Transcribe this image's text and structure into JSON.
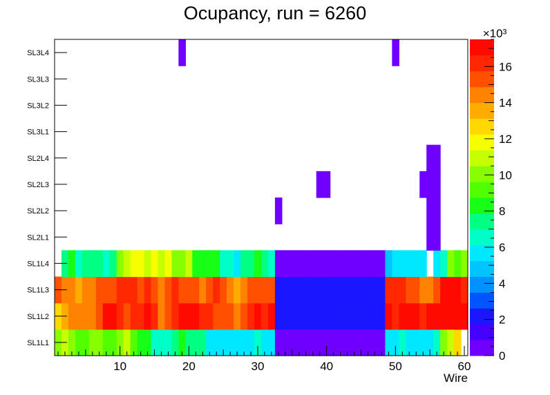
{
  "chart_data": {
    "type": "heatmap",
    "title": "Ocupancy, run = 6260",
    "xlabel": "Wire",
    "ylabel": "",
    "xlim": [
      0.5,
      60.5
    ],
    "x_ticks": [
      10,
      20,
      30,
      40,
      50,
      60
    ],
    "y_categories": [
      "SL1L1",
      "SL1L2",
      "SL1L3",
      "SL1L4",
      "SL2L1",
      "SL2L2",
      "SL2L3",
      "SL2L4",
      "SL3L1",
      "SL3L2",
      "SL3L3",
      "SL3L4"
    ],
    "z_range": [
      0,
      17.5
    ],
    "z_ticks": [
      0,
      2,
      4,
      6,
      8,
      10,
      12,
      14,
      16
    ],
    "z_exponent": "×10³",
    "palette": [
      "#6f00ff",
      "#4500ff",
      "#1a17ff",
      "#0055ff",
      "#0092ff",
      "#00c4ff",
      "#00e8ff",
      "#00ffc8",
      "#00ff82",
      "#17ff17",
      "#51ff00",
      "#88ff00",
      "#c5ff00",
      "#f5ff00",
      "#ffd800",
      "#ffab00",
      "#ff8200",
      "#ff5000",
      "#ff2800",
      "#ff0a00"
    ],
    "rows": {
      "SL1L1": [
        9.8,
        10.5,
        10.2,
        9.3,
        9.6,
        10.1,
        9.8,
        9.0,
        9.4,
        10.3,
        10.5,
        9.2,
        8.3,
        8.6,
        6.8,
        6.4,
        6.6,
        7.6,
        7.9,
        7.4,
        7.8,
        7.5,
        6.0,
        5.8,
        6.1,
        5.7,
        6.0,
        5.9,
        5.8,
        6.2,
        5.9,
        6.1,
        0.6,
        0.7,
        0.6,
        0.7,
        0.8,
        0.7,
        0.6,
        0.7,
        0.8,
        0.7,
        0.6,
        0.7,
        0.6,
        0.7,
        0.6,
        0.7,
        6.0,
        5.8,
        6.2,
        5.9,
        6.1,
        6.0,
        5.9,
        6.9,
        10.2,
        11.3,
        12.4,
        0
      ],
      "SL1L2": [
        12.5,
        13.3,
        14.4,
        14.7,
        14.5,
        14.3,
        15.2,
        16.7,
        17.3,
        16.1,
        15.4,
        16.4,
        16.3,
        17.5,
        16.1,
        14.4,
        15.1,
        16.2,
        17.2,
        17.4,
        17.3,
        16.6,
        16.0,
        15.4,
        15.2,
        15.3,
        14.3,
        15.5,
        16.2,
        17.1,
        16.5,
        17.4,
        2.0,
        1.9,
        2.0,
        1.9,
        2.0,
        1.9,
        2.1,
        2.0,
        1.9,
        2.0,
        1.9,
        2.0,
        1.9,
        2.0,
        2.1,
        2.0,
        17.2,
        16.3,
        17.4,
        16.8,
        17.3,
        16.5,
        17.1,
        17.2,
        17.3,
        17.1,
        17.4,
        16.9
      ],
      "SL1L3": [
        15.6,
        14.4,
        14.2,
        13.7,
        14.4,
        14.3,
        15.2,
        15.1,
        15.1,
        16.0,
        15.9,
        16.1,
        15.7,
        16.2,
        15.6,
        14.3,
        15.3,
        16.1,
        15.4,
        15.4,
        15.1,
        14.2,
        15.6,
        16.1,
        15.4,
        14.2,
        13.6,
        14.3,
        15.5,
        15.2,
        15.5,
        15.2,
        2.1,
        2.0,
        2.1,
        2.0,
        2.1,
        2.0,
        2.1,
        2.0,
        2.1,
        2.0,
        2.1,
        2.0,
        2.1,
        2.0,
        2.1,
        2.0,
        15.8,
        15.9,
        15.8,
        15.6,
        14.9,
        14.5,
        14.6,
        15.6,
        16.9,
        17.5,
        17.2,
        15.9
      ],
      "SL1L4": [
        0,
        7.6,
        8.1,
        6.7,
        7.5,
        7.2,
        7.5,
        6.9,
        7.6,
        10.4,
        10.5,
        11.5,
        11.7,
        10.6,
        11.6,
        10.5,
        11.4,
        9.7,
        10.1,
        10.6,
        8.2,
        8.4,
        8.5,
        8.2,
        6.3,
        6.7,
        6.1,
        7.8,
        7.7,
        8.1,
        7.7,
        6.6,
        0.8,
        0.7,
        0.8,
        0.7,
        0.8,
        0.7,
        0.8,
        0.7,
        0.8,
        0.7,
        0.8,
        0.7,
        0.8,
        0.7,
        0.8,
        0.7,
        4.6,
        5.4,
        5.5,
        5.6,
        5.3,
        5.4,
        0,
        5.5,
        6.8,
        10.2,
        9.4,
        10.3
      ],
      "SL2L1": [
        0,
        0,
        0,
        0,
        0,
        0,
        0,
        0,
        0,
        0,
        0,
        0,
        0,
        0,
        0,
        0,
        0,
        0,
        0,
        0,
        0,
        0,
        0,
        0,
        0,
        0,
        0,
        0,
        0,
        0,
        0,
        0,
        0,
        0,
        0,
        0,
        0,
        0,
        0,
        0,
        0,
        0,
        0,
        0,
        0,
        0,
        0,
        0,
        0,
        0,
        0,
        0,
        0,
        0,
        0.5,
        0.5,
        0,
        0,
        0,
        0
      ],
      "SL2L2": [
        0,
        0,
        0,
        0,
        0,
        0,
        0,
        0,
        0,
        0,
        0,
        0,
        0,
        0,
        0,
        0,
        0,
        0,
        0,
        0,
        0,
        0,
        0,
        0,
        0,
        0,
        0,
        0,
        0,
        0,
        0,
        0,
        0.6,
        0,
        0,
        0,
        0,
        0,
        0,
        0,
        0,
        0,
        0,
        0,
        0,
        0,
        0,
        0,
        0,
        0,
        0,
        0,
        0,
        0,
        0.5,
        0.5,
        0,
        0,
        0,
        0
      ],
      "SL2L3": [
        0,
        0,
        0,
        0,
        0,
        0,
        0,
        0,
        0,
        0,
        0,
        0,
        0,
        0,
        0,
        0,
        0,
        0,
        0,
        0,
        0,
        0,
        0,
        0,
        0,
        0,
        0,
        0,
        0,
        0,
        0,
        0,
        0,
        0,
        0,
        0,
        0,
        0,
        0.6,
        0.6,
        0,
        0,
        0,
        0,
        0,
        0,
        0,
        0,
        0,
        0,
        0,
        0,
        0,
        0.6,
        0.5,
        0.5,
        0,
        0,
        0,
        0
      ],
      "SL2L4": [
        0,
        0,
        0,
        0,
        0,
        0,
        0,
        0,
        0,
        0,
        0,
        0,
        0,
        0,
        0,
        0,
        0,
        0,
        0,
        0,
        0,
        0,
        0,
        0,
        0,
        0,
        0,
        0,
        0,
        0,
        0,
        0,
        0,
        0,
        0,
        0,
        0,
        0,
        0,
        0,
        0,
        0,
        0,
        0,
        0,
        0,
        0,
        0,
        0,
        0,
        0,
        0,
        0,
        0,
        0.5,
        0.5,
        0,
        0,
        0,
        0
      ],
      "SL3L1": [
        0,
        0,
        0,
        0,
        0,
        0,
        0,
        0,
        0,
        0,
        0,
        0,
        0,
        0,
        0,
        0,
        0,
        0,
        0,
        0,
        0,
        0,
        0,
        0,
        0,
        0,
        0,
        0,
        0,
        0,
        0,
        0,
        0,
        0,
        0,
        0,
        0,
        0,
        0,
        0,
        0,
        0,
        0,
        0,
        0,
        0,
        0,
        0,
        0,
        0,
        0,
        0,
        0,
        0,
        0,
        0,
        0,
        0,
        0,
        0
      ],
      "SL3L2": [
        0,
        0,
        0,
        0,
        0,
        0,
        0,
        0,
        0,
        0,
        0,
        0,
        0,
        0,
        0,
        0,
        0,
        0,
        0,
        0,
        0,
        0,
        0,
        0,
        0,
        0,
        0,
        0,
        0,
        0,
        0,
        0,
        0,
        0,
        0,
        0,
        0,
        0,
        0,
        0,
        0,
        0,
        0,
        0,
        0,
        0,
        0,
        0,
        0,
        0,
        0,
        0,
        0,
        0,
        0,
        0,
        0,
        0,
        0,
        0
      ],
      "SL3L3": [
        0,
        0,
        0,
        0,
        0,
        0,
        0,
        0,
        0,
        0,
        0,
        0,
        0,
        0,
        0,
        0,
        0,
        0,
        0,
        0,
        0,
        0,
        0,
        0,
        0,
        0,
        0,
        0,
        0,
        0,
        0,
        0,
        0,
        0,
        0,
        0,
        0,
        0,
        0,
        0,
        0,
        0,
        0,
        0,
        0,
        0,
        0,
        0,
        0,
        0,
        0,
        0,
        0,
        0,
        0,
        0,
        0,
        0,
        0,
        0
      ],
      "SL3L4": [
        0,
        0,
        0,
        0,
        0,
        0,
        0,
        0,
        0,
        0,
        0,
        0,
        0,
        0,
        0,
        0,
        0,
        0,
        0.6,
        0,
        0,
        0,
        0,
        0,
        0,
        0,
        0,
        0,
        0,
        0,
        0,
        0,
        0,
        0,
        0,
        0,
        0,
        0,
        0,
        0,
        0,
        0,
        0,
        0,
        0,
        0,
        0,
        0,
        0,
        0.6,
        0,
        0,
        0,
        0,
        0,
        0,
        0,
        0,
        0,
        0
      ]
    }
  }
}
